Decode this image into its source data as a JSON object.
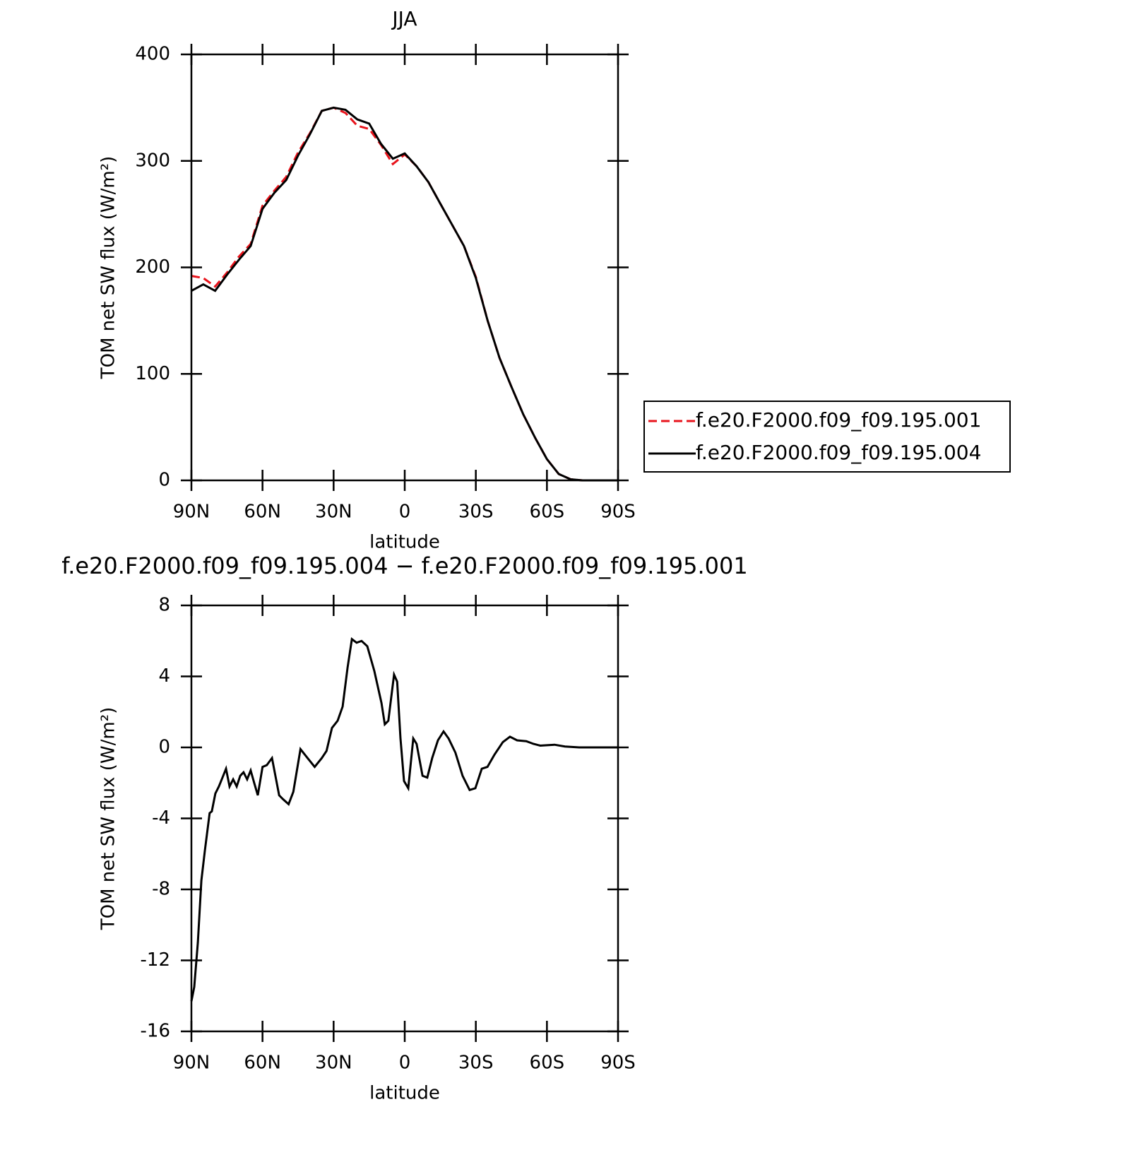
{
  "chart_data": [
    {
      "type": "line",
      "title": "JJA",
      "xlabel": "latitude",
      "ylabel": "TOM net SW flux (W/m²)",
      "x": [
        90,
        85,
        80,
        75,
        70,
        65,
        60,
        55,
        50,
        45,
        40,
        35,
        30,
        25,
        20,
        15,
        10,
        5,
        0,
        -5,
        -10,
        -15,
        -20,
        -25,
        -30,
        -35,
        -40,
        -45,
        -50,
        -55,
        -60,
        -65,
        -70,
        -75,
        -80,
        -85,
        -90
      ],
      "series": [
        {
          "name": "f.e20.F2000.f09_f09.195.001",
          "color": "#e8141c",
          "linestyle": "dashed",
          "values": [
            192,
            190,
            182,
            195,
            210,
            222,
            258,
            272,
            285,
            308,
            326,
            347,
            350,
            345,
            333,
            330,
            315,
            297,
            306,
            295,
            280,
            260,
            240,
            220,
            191,
            150,
            115,
            88,
            62,
            40,
            20,
            6,
            1,
            0,
            0,
            0,
            0
          ]
        },
        {
          "name": "f.e20.F2000.f09_f09.195.004",
          "color": "#000000",
          "linestyle": "solid",
          "values": [
            178,
            184,
            178,
            193,
            207,
            220,
            255,
            270,
            282,
            305,
            325,
            347,
            350,
            348,
            339,
            335,
            316,
            302,
            307,
            295,
            280,
            260,
            240,
            220,
            190,
            150,
            115,
            88,
            62,
            40,
            20,
            6,
            1,
            0,
            0,
            0,
            0
          ]
        }
      ],
      "xlim": [
        90,
        -90
      ],
      "xticks": [
        {
          "value": 90,
          "label": "90N"
        },
        {
          "value": 60,
          "label": "60N"
        },
        {
          "value": 30,
          "label": "30N"
        },
        0,
        {
          "value": -30,
          "label": "30S"
        },
        {
          "value": -60,
          "label": "60S"
        },
        {
          "value": -90,
          "label": "90S"
        }
      ],
      "ylim": [
        0,
        400
      ],
      "yticks": [
        0,
        100,
        200,
        300,
        400
      ],
      "legend": "right"
    },
    {
      "type": "line",
      "title": "f.e20.F2000.f09_f09.195.004 − f.e20.F2000.f09_f09.195.001",
      "xlabel": "latitude",
      "ylabel": "TOM net SW flux (W/m²)",
      "x": [
        90,
        88.8,
        87.3,
        85.8,
        84.3,
        82.3,
        81.4,
        79.9,
        78.4,
        76.9,
        75.4,
        73.9,
        72.4,
        70.9,
        69.4,
        68,
        66.5,
        65,
        63.5,
        62,
        60,
        58.2,
        56,
        53,
        51.5,
        49,
        47,
        44,
        41,
        38,
        35,
        33,
        30.7,
        28.3,
        26.2,
        24.1,
        22.3,
        20.3,
        18.2,
        15.8,
        12.8,
        9.8,
        8.4,
        6.9,
        4.5,
        3.2,
        1.8,
        0.3,
        -1.5,
        -3.6,
        -5,
        -7.5,
        -9.5,
        -11.6,
        -14,
        -16.4,
        -18.5,
        -21.4,
        -24.4,
        -27.4,
        -29.8,
        -32.5,
        -34.9,
        -37.9,
        -41.4,
        -44.4,
        -47.4,
        -51.3,
        -54.3,
        -57.2,
        -63.2,
        -67.6,
        -73.6,
        -90
      ],
      "series": [
        {
          "color": "#000000",
          "linestyle": "solid",
          "values": [
            -14.3,
            -13.5,
            -11,
            -7.5,
            -5.8,
            -3.7,
            -3.6,
            -2.6,
            -2.2,
            -1.7,
            -1.2,
            -2.2,
            -1.8,
            -2.2,
            -1.6,
            -1.4,
            -1.8,
            -1.3,
            -2.0,
            -2.7,
            -1.1,
            -1.0,
            -0.6,
            -2.7,
            -2.9,
            -3.2,
            -2.5,
            -0.1,
            -0.6,
            -1.1,
            -0.6,
            -0.2,
            1.1,
            1.5,
            2.3,
            4.5,
            6.1,
            5.9,
            6.0,
            5.7,
            4.3,
            2.5,
            1.3,
            1.5,
            4.1,
            3.7,
            0.5,
            -1.9,
            -2.3,
            0.5,
            0.2,
            -1.6,
            -1.7,
            -0.6,
            0.4,
            0.9,
            0.5,
            -0.3,
            -1.6,
            -2.4,
            -2.3,
            -1.2,
            -1.1,
            -0.4,
            0.3,
            0.6,
            0.4,
            0.35,
            0.2,
            0.1,
            0.15,
            0.05,
            0,
            0
          ]
        }
      ],
      "xlim": [
        90,
        -90
      ],
      "xticks": [
        {
          "value": 90,
          "label": "90N"
        },
        {
          "value": 60,
          "label": "60N"
        },
        {
          "value": 30,
          "label": "30N"
        },
        0,
        {
          "value": -30,
          "label": "30S"
        },
        {
          "value": -60,
          "label": "60S"
        },
        {
          "value": -90,
          "label": "90S"
        }
      ],
      "ylim": [
        -16,
        8
      ],
      "yticks": [
        -16,
        -12,
        -8,
        -4,
        0,
        4,
        8
      ]
    }
  ]
}
